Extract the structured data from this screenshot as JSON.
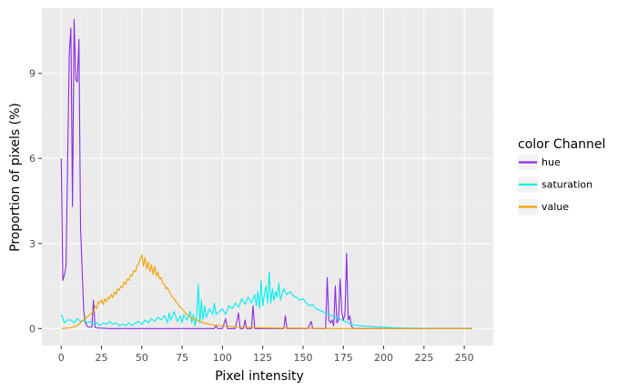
{
  "chart_data": {
    "type": "line",
    "xlabel": "Pixel intensity",
    "ylabel": "Proportion of pixels (%)",
    "xlim": [
      -12,
      268
    ],
    "ylim": [
      -0.6,
      11.3
    ],
    "x_ticks": [
      0,
      25,
      50,
      75,
      100,
      125,
      150,
      175,
      200,
      225,
      250
    ],
    "x_tick_labels": [
      "0",
      "25",
      "50",
      "75",
      "100",
      "125",
      "150",
      "175",
      "200",
      "225",
      "250"
    ],
    "y_ticks": [
      0,
      3,
      6,
      9
    ],
    "y_tick_labels": [
      "0",
      "3",
      "6",
      "9"
    ],
    "grid": true,
    "legend": {
      "title": "color Channel",
      "position": "right"
    },
    "series": [
      {
        "name": "hue",
        "color": "#8a2be2",
        "points": [
          [
            0,
            6.0
          ],
          [
            1,
            1.7
          ],
          [
            2,
            1.9
          ],
          [
            3,
            2.2
          ],
          [
            5,
            9.7
          ],
          [
            6,
            10.6
          ],
          [
            7,
            4.3
          ],
          [
            8,
            10.9
          ],
          [
            9,
            8.8
          ],
          [
            10,
            8.7
          ],
          [
            11,
            10.2
          ],
          [
            12,
            3.6
          ],
          [
            13,
            2.0
          ],
          [
            14,
            0.6
          ],
          [
            15,
            0.2
          ],
          [
            16,
            0.1
          ],
          [
            17,
            0.05
          ],
          [
            18,
            0.05
          ],
          [
            19,
            0.05
          ],
          [
            20,
            1.0
          ],
          [
            21,
            0.05
          ],
          [
            22,
            0.02
          ],
          [
            30,
            0.0
          ],
          [
            60,
            0.0
          ],
          [
            90,
            0.0
          ],
          [
            95,
            0.0
          ],
          [
            96,
            0.1
          ],
          [
            97,
            0.0
          ],
          [
            100,
            0.0
          ],
          [
            102,
            0.35
          ],
          [
            103,
            0.0
          ],
          [
            108,
            0.0
          ],
          [
            110,
            0.55
          ],
          [
            111,
            0.0
          ],
          [
            113,
            0.0
          ],
          [
            114,
            0.3
          ],
          [
            115,
            0.0
          ],
          [
            118,
            0.0
          ],
          [
            119,
            0.8
          ],
          [
            120,
            0.0
          ],
          [
            138,
            0.0
          ],
          [
            139,
            0.45
          ],
          [
            140,
            0.0
          ],
          [
            152,
            0.0
          ],
          [
            153,
            0.0
          ],
          [
            155,
            0.25
          ],
          [
            156,
            0.0
          ],
          [
            164,
            0.0
          ],
          [
            165,
            1.8
          ],
          [
            166,
            0.3
          ],
          [
            167,
            0.2
          ],
          [
            168,
            0.3
          ],
          [
            169,
            0.1
          ],
          [
            170,
            1.5
          ],
          [
            171,
            0.2
          ],
          [
            172,
            0.3
          ],
          [
            173,
            1.75
          ],
          [
            174,
            0.6
          ],
          [
            175,
            0.3
          ],
          [
            176,
            0.5
          ],
          [
            177,
            2.65
          ],
          [
            178,
            0.3
          ],
          [
            179,
            0.45
          ],
          [
            180,
            0.1
          ],
          [
            181,
            0.0
          ],
          [
            190,
            0.0
          ],
          [
            200,
            0.0
          ],
          [
            230,
            0.0
          ],
          [
            255,
            0.0
          ]
        ]
      },
      {
        "name": "saturation",
        "color": "#00eeee",
        "points": [
          [
            0,
            0.5
          ],
          [
            2,
            0.2
          ],
          [
            4,
            0.3
          ],
          [
            6,
            0.3
          ],
          [
            8,
            0.2
          ],
          [
            10,
            0.35
          ],
          [
            12,
            0.25
          ],
          [
            14,
            0.3
          ],
          [
            16,
            0.2
          ],
          [
            18,
            0.25
          ],
          [
            20,
            0.15
          ],
          [
            22,
            0.2
          ],
          [
            24,
            0.1
          ],
          [
            26,
            0.2
          ],
          [
            28,
            0.15
          ],
          [
            30,
            0.25
          ],
          [
            32,
            0.15
          ],
          [
            34,
            0.2
          ],
          [
            36,
            0.1
          ],
          [
            38,
            0.15
          ],
          [
            40,
            0.1
          ],
          [
            42,
            0.2
          ],
          [
            44,
            0.1
          ],
          [
            46,
            0.2
          ],
          [
            48,
            0.25
          ],
          [
            50,
            0.15
          ],
          [
            52,
            0.3
          ],
          [
            54,
            0.2
          ],
          [
            56,
            0.35
          ],
          [
            58,
            0.25
          ],
          [
            60,
            0.4
          ],
          [
            62,
            0.3
          ],
          [
            64,
            0.45
          ],
          [
            66,
            0.2
          ],
          [
            67,
            0.55
          ],
          [
            68,
            0.3
          ],
          [
            70,
            0.6
          ],
          [
            72,
            0.25
          ],
          [
            74,
            0.45
          ],
          [
            75,
            0.2
          ],
          [
            76,
            0.5
          ],
          [
            78,
            0.3
          ],
          [
            80,
            0.6
          ],
          [
            81,
            0.2
          ],
          [
            82,
            0.5
          ],
          [
            83,
            0.1
          ],
          [
            84,
            0.4
          ],
          [
            85,
            1.55
          ],
          [
            86,
            0.2
          ],
          [
            87,
            1.0
          ],
          [
            88,
            0.3
          ],
          [
            89,
            0.8
          ],
          [
            90,
            0.4
          ],
          [
            92,
            0.7
          ],
          [
            94,
            0.5
          ],
          [
            95,
            0.9
          ],
          [
            96,
            0.5
          ],
          [
            98,
            0.6
          ],
          [
            100,
            0.7
          ],
          [
            102,
            0.5
          ],
          [
            104,
            0.8
          ],
          [
            106,
            0.7
          ],
          [
            108,
            0.9
          ],
          [
            110,
            0.75
          ],
          [
            112,
            1.05
          ],
          [
            114,
            0.85
          ],
          [
            116,
            1.1
          ],
          [
            118,
            0.9
          ],
          [
            120,
            1.2
          ],
          [
            121,
            0.8
          ],
          [
            122,
            1.3
          ],
          [
            123,
            0.7
          ],
          [
            124,
            1.7
          ],
          [
            125,
            0.8
          ],
          [
            126,
            1.2
          ],
          [
            127,
            1.5
          ],
          [
            128,
            0.9
          ],
          [
            129,
            2.0
          ],
          [
            130,
            0.9
          ],
          [
            131,
            1.4
          ],
          [
            132,
            1.0
          ],
          [
            133,
            1.3
          ],
          [
            134,
            1.1
          ],
          [
            135,
            1.6
          ],
          [
            136,
            1.0
          ],
          [
            138,
            1.4
          ],
          [
            140,
            1.2
          ],
          [
            142,
            1.3
          ],
          [
            144,
            1.15
          ],
          [
            146,
            1.1
          ],
          [
            148,
            1.0
          ],
          [
            150,
            1.05
          ],
          [
            152,
            0.9
          ],
          [
            154,
            0.8
          ],
          [
            156,
            0.85
          ],
          [
            158,
            0.7
          ],
          [
            160,
            0.65
          ],
          [
            162,
            0.6
          ],
          [
            164,
            0.55
          ],
          [
            166,
            0.5
          ],
          [
            168,
            0.45
          ],
          [
            170,
            0.4
          ],
          [
            172,
            0.35
          ],
          [
            174,
            0.3
          ],
          [
            176,
            0.25
          ],
          [
            178,
            0.2
          ],
          [
            180,
            0.15
          ],
          [
            182,
            0.12
          ],
          [
            185,
            0.1
          ],
          [
            190,
            0.08
          ],
          [
            195,
            0.06
          ],
          [
            200,
            0.05
          ],
          [
            205,
            0.03
          ],
          [
            210,
            0.02
          ],
          [
            220,
            0.01
          ],
          [
            230,
            0.0
          ],
          [
            255,
            0.0
          ]
        ]
      },
      {
        "name": "value",
        "color": "#f5a000",
        "points": [
          [
            0,
            0.0
          ],
          [
            5,
            0.02
          ],
          [
            8,
            0.05
          ],
          [
            10,
            0.1
          ],
          [
            12,
            0.2
          ],
          [
            14,
            0.3
          ],
          [
            16,
            0.4
          ],
          [
            18,
            0.5
          ],
          [
            20,
            0.6
          ],
          [
            21,
            0.8
          ],
          [
            22,
            0.7
          ],
          [
            23,
            0.95
          ],
          [
            24,
            0.9
          ],
          [
            25,
            1.0
          ],
          [
            26,
            0.85
          ],
          [
            27,
            1.05
          ],
          [
            28,
            0.95
          ],
          [
            29,
            1.1
          ],
          [
            30,
            1.05
          ],
          [
            31,
            1.2
          ],
          [
            32,
            1.1
          ],
          [
            33,
            1.3
          ],
          [
            34,
            1.2
          ],
          [
            35,
            1.4
          ],
          [
            36,
            1.35
          ],
          [
            37,
            1.5
          ],
          [
            38,
            1.45
          ],
          [
            39,
            1.65
          ],
          [
            40,
            1.55
          ],
          [
            41,
            1.75
          ],
          [
            42,
            1.7
          ],
          [
            43,
            1.9
          ],
          [
            44,
            1.85
          ],
          [
            45,
            2.05
          ],
          [
            46,
            2.0
          ],
          [
            47,
            2.2
          ],
          [
            48,
            2.3
          ],
          [
            49,
            2.45
          ],
          [
            50,
            2.6
          ],
          [
            51,
            2.2
          ],
          [
            52,
            2.5
          ],
          [
            53,
            2.1
          ],
          [
            54,
            2.35
          ],
          [
            55,
            2.0
          ],
          [
            56,
            2.25
          ],
          [
            57,
            1.9
          ],
          [
            58,
            2.2
          ],
          [
            59,
            1.85
          ],
          [
            60,
            2.0
          ],
          [
            61,
            1.75
          ],
          [
            62,
            1.8
          ],
          [
            63,
            1.6
          ],
          [
            64,
            1.55
          ],
          [
            65,
            1.4
          ],
          [
            66,
            1.45
          ],
          [
            67,
            1.3
          ],
          [
            68,
            1.2
          ],
          [
            69,
            1.1
          ],
          [
            70,
            1.05
          ],
          [
            71,
            0.95
          ],
          [
            72,
            0.9
          ],
          [
            73,
            0.8
          ],
          [
            74,
            0.75
          ],
          [
            75,
            0.7
          ],
          [
            76,
            0.62
          ],
          [
            77,
            0.55
          ],
          [
            78,
            0.5
          ],
          [
            80,
            0.4
          ],
          [
            82,
            0.35
          ],
          [
            84,
            0.3
          ],
          [
            86,
            0.25
          ],
          [
            88,
            0.2
          ],
          [
            90,
            0.18
          ],
          [
            92,
            0.15
          ],
          [
            95,
            0.12
          ],
          [
            100,
            0.1
          ],
          [
            105,
            0.07
          ],
          [
            110,
            0.05
          ],
          [
            120,
            0.03
          ],
          [
            130,
            0.02
          ],
          [
            150,
            0.01
          ],
          [
            170,
            0.0
          ],
          [
            200,
            0.0
          ],
          [
            255,
            0.0
          ]
        ]
      }
    ]
  }
}
